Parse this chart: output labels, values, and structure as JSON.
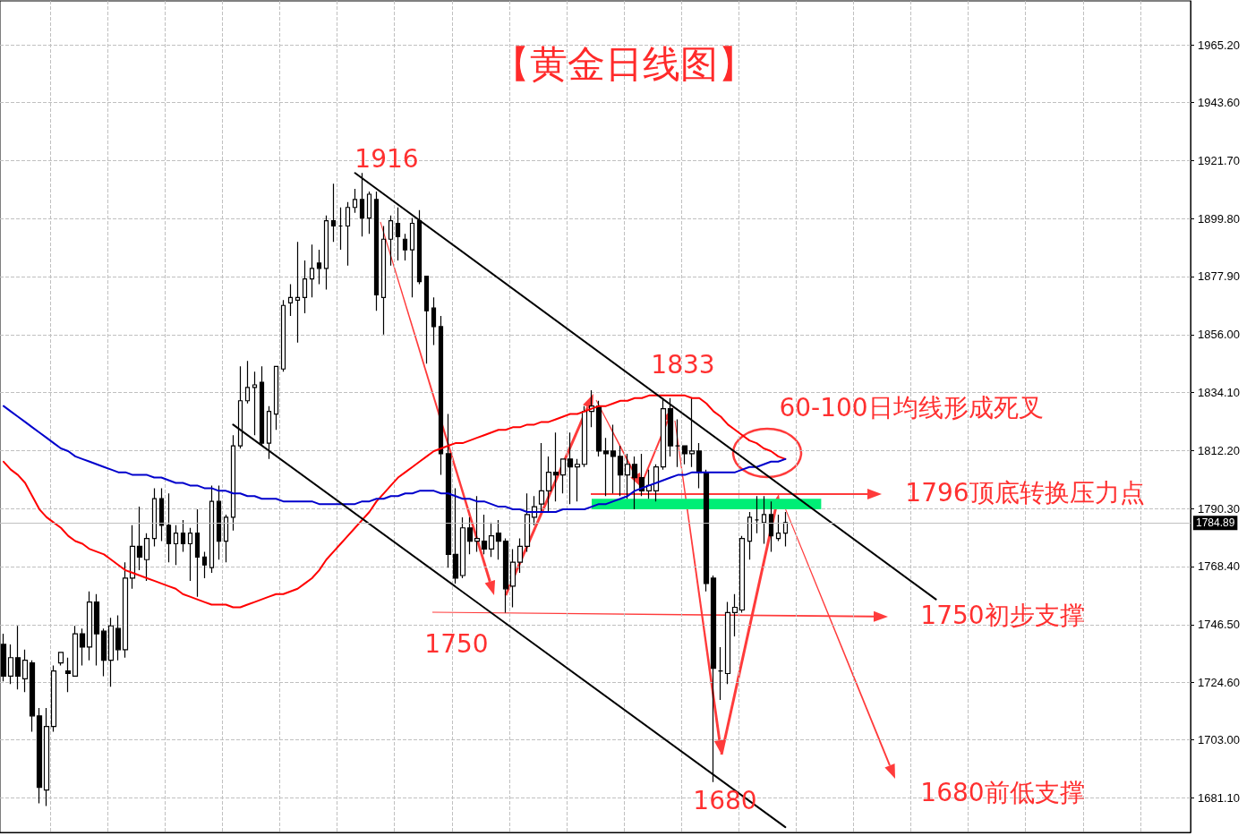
{
  "chart_data": {
    "type": "candlestick",
    "title": "【黄金日线图】",
    "categories": [
      null,
      null,
      null,
      null,
      null,
      null,
      null,
      null,
      null,
      null,
      null,
      null,
      null,
      null,
      null,
      null,
      null,
      null,
      null,
      null,
      null,
      null,
      null,
      null,
      null,
      null,
      null,
      null,
      null,
      null,
      null,
      null,
      null,
      null,
      null,
      null,
      null,
      null,
      null,
      null,
      null,
      null,
      null,
      null,
      null,
      null,
      null,
      null,
      null,
      null,
      null,
      null,
      null,
      null,
      null,
      null,
      null,
      null,
      null,
      null,
      null,
      null,
      null,
      null,
      null,
      null,
      null,
      null,
      null,
      null,
      null,
      null,
      null,
      null,
      null,
      null,
      null,
      null,
      null,
      null,
      null,
      null,
      null,
      null,
      null,
      null,
      null,
      null,
      null,
      null,
      null,
      null,
      null,
      null,
      null,
      null,
      null,
      null,
      null,
      null,
      null,
      null,
      null,
      null,
      null,
      null,
      null,
      null,
      null,
      null,
      null,
      null,
      null,
      null,
      null,
      null,
      null,
      null,
      null,
      null,
      null,
      null,
      null,
      null,
      null,
      null,
      null,
      null,
      null,
      null,
      null,
      null,
      null,
      null,
      null,
      null,
      null,
      null,
      null,
      null,
      null,
      null,
      null,
      null,
      null,
      null,
      null,
      null,
      null,
      null,
      null,
      null,
      null,
      null,
      null,
      null,
      null,
      null,
      null,
      null,
      null,
      null,
      null,
      null,
      null,
      null
    ],
    "series": [
      {
        "type": "candlestick",
        "ohlc": [
          [
            1739,
            1743,
            1725,
            1727
          ],
          [
            1727,
            1739,
            1724,
            1734
          ],
          [
            1734,
            1746,
            1722,
            1727
          ],
          [
            1726,
            1737,
            1721,
            1733
          ],
          [
            1732,
            1733,
            1706,
            1712
          ],
          [
            1712,
            1715,
            1679,
            1685
          ],
          [
            1684,
            1715,
            1678,
            1708
          ],
          [
            1708,
            1731,
            1706,
            1729
          ],
          [
            1732,
            1736,
            1731,
            1736
          ],
          [
            1729,
            1734,
            1721,
            1728
          ],
          [
            1727,
            1746,
            1727,
            1743
          ],
          [
            1743,
            1745,
            1731,
            1738
          ],
          [
            1738,
            1759,
            1733,
            1755
          ],
          [
            1755,
            1758,
            1731,
            1743
          ],
          [
            1744,
            1745,
            1727,
            1733
          ],
          [
            1733,
            1749,
            1723,
            1746
          ],
          [
            1745,
            1750,
            1733,
            1737
          ],
          [
            1737,
            1770,
            1734,
            1764
          ],
          [
            1764,
            1784,
            1760,
            1776
          ],
          [
            1776,
            1791,
            1767,
            1772
          ],
          [
            1771,
            1781,
            1763,
            1779
          ],
          [
            1779,
            1798,
            1776,
            1794
          ],
          [
            1794,
            1798,
            1778,
            1784
          ],
          [
            1784,
            1796,
            1770,
            1777
          ],
          [
            1777,
            1784,
            1769,
            1781
          ],
          [
            1781,
            1786,
            1774,
            1777
          ],
          [
            1777,
            1783,
            1763,
            1781
          ],
          [
            1781,
            1790,
            1757,
            1772
          ],
          [
            1772,
            1774,
            1764,
            1769
          ],
          [
            1768,
            1799,
            1766,
            1793
          ],
          [
            1793,
            1799,
            1771,
            1778
          ],
          [
            1778,
            1788,
            1770,
            1787
          ],
          [
            1787,
            1818,
            1782,
            1814
          ],
          [
            1814,
            1844,
            1813,
            1831
          ],
          [
            1831,
            1846,
            1830,
            1836
          ],
          [
            1836,
            1842,
            1818,
            1837
          ],
          [
            1838,
            1844,
            1814,
            1815
          ],
          [
            1815,
            1829,
            1809,
            1827
          ],
          [
            1826,
            1844,
            1820,
            1844
          ],
          [
            1843,
            1869,
            1842,
            1867
          ],
          [
            1868,
            1875,
            1863,
            1870
          ],
          [
            1869,
            1891,
            1853,
            1870
          ],
          [
            1870,
            1884,
            1864,
            1877
          ],
          [
            1877,
            1890,
            1870,
            1881
          ],
          [
            1883,
            1888,
            1875,
            1881
          ],
          [
            1881,
            1901,
            1873,
            1899
          ],
          [
            1899,
            1913,
            1891,
            1897
          ],
          [
            1897,
            1904,
            1888,
            1897
          ],
          [
            1897,
            1906,
            1882,
            1904
          ],
          [
            1904,
            1911,
            1902,
            1907
          ],
          [
            1907,
            1917,
            1893,
            1900
          ],
          [
            1900,
            1910,
            1894,
            1909
          ],
          [
            1907,
            1910,
            1865,
            1871
          ],
          [
            1870,
            1897,
            1856,
            1892
          ],
          [
            1892,
            1901,
            1882,
            1899
          ],
          [
            1898,
            1904,
            1884,
            1893
          ],
          [
            1892,
            1894,
            1884,
            1888
          ],
          [
            1888,
            1900,
            1870,
            1898
          ],
          [
            1899,
            1903,
            1875,
            1876
          ],
          [
            1878,
            1878,
            1845,
            1865
          ],
          [
            1866,
            1870,
            1852,
            1859
          ],
          [
            1859,
            1863,
            1803,
            1811
          ],
          [
            1811,
            1826,
            1768,
            1773
          ],
          [
            1773,
            1798,
            1762,
            1764
          ],
          [
            1765,
            1787,
            1764,
            1783
          ],
          [
            1783,
            1787,
            1773,
            1778
          ],
          [
            1778,
            1795,
            1774,
            1779
          ],
          [
            1778,
            1788,
            1773,
            1775
          ],
          [
            1775,
            1785,
            1772,
            1780
          ],
          [
            1781,
            1786,
            1771,
            1778
          ],
          [
            1778,
            1779,
            1751,
            1760
          ],
          [
            1761,
            1775,
            1753,
            1770
          ],
          [
            1770,
            1779,
            1766,
            1776
          ],
          [
            1776,
            1796,
            1774,
            1788
          ],
          [
            1787,
            1795,
            1784,
            1791
          ],
          [
            1792,
            1815,
            1789,
            1797
          ],
          [
            1797,
            1810,
            1789,
            1804
          ],
          [
            1804,
            1819,
            1793,
            1803
          ],
          [
            1803,
            1809,
            1796,
            1809
          ],
          [
            1809,
            1819,
            1792,
            1806
          ],
          [
            1806,
            1809,
            1793,
            1807
          ],
          [
            1807,
            1829,
            1806,
            1827
          ],
          [
            1827,
            1835,
            1821,
            1829
          ],
          [
            1829,
            1831,
            1810,
            1812
          ],
          [
            1812,
            1817,
            1795,
            1811
          ],
          [
            1812,
            1822,
            1796,
            1810
          ],
          [
            1810,
            1814,
            1795,
            1803
          ],
          [
            1803,
            1811,
            1794,
            1807
          ],
          [
            1807,
            1810,
            1790,
            1802
          ],
          [
            1802,
            1811,
            1795,
            1797
          ],
          [
            1797,
            1805,
            1794,
            1799
          ],
          [
            1797,
            1807,
            1793,
            1806
          ],
          [
            1806,
            1832,
            1805,
            1828
          ],
          [
            1828,
            1832,
            1810,
            1814
          ],
          [
            1814,
            1824,
            1806,
            1814
          ],
          [
            1814,
            1814,
            1807,
            1811
          ],
          [
            1811,
            1832,
            1806,
            1812
          ],
          [
            1812,
            1815,
            1798,
            1804
          ],
          [
            1804,
            1805,
            1759,
            1762
          ],
          [
            1764,
            1765,
            1687,
            1730
          ],
          [
            1729,
            1738,
            1718,
            1729
          ],
          [
            1728,
            1755,
            1724,
            1751
          ],
          [
            1751,
            1758,
            1742,
            1753
          ],
          [
            1752,
            1780,
            1751,
            1779
          ],
          [
            1778,
            1789,
            1771,
            1787
          ],
          [
            1786,
            1795,
            1781,
            1786
          ],
          [
            1785,
            1795,
            1777,
            1788
          ],
          [
            1788,
            1793,
            1774,
            1780
          ],
          [
            1779,
            1788,
            1778,
            1781
          ],
          [
            1781,
            1789,
            1776,
            1785
          ],
          null,
          null,
          null,
          null,
          null,
          null,
          null,
          null,
          null,
          null,
          null,
          null,
          null,
          null,
          null,
          null,
          null,
          null,
          null,
          null,
          null,
          null,
          null,
          null,
          null,
          null,
          null,
          null,
          null,
          null,
          null,
          null,
          null,
          null,
          null,
          null,
          null,
          null,
          null,
          null,
          null,
          null,
          null,
          null,
          null,
          null,
          null,
          null,
          null,
          null,
          null,
          null,
          null,
          null,
          null,
          null
        ]
      },
      {
        "type": "line",
        "color": "#ff0000",
        "values": [
          1808,
          1805,
          1803,
          1800,
          1795,
          1790,
          1787,
          1785,
          1783,
          1780,
          1778,
          1777,
          1775,
          1774,
          1773,
          1771,
          1769,
          1767,
          1766,
          1765,
          1764,
          1763,
          1762,
          1761,
          1760,
          1758,
          1757,
          1756,
          1755,
          1754,
          1754,
          1754,
          1753,
          1753,
          1754,
          1755,
          1756,
          1757,
          1758,
          1758,
          1759,
          1760,
          1762,
          1764,
          1767,
          1771,
          1774,
          1777,
          1780,
          1783,
          1786,
          1789,
          1793,
          1796,
          1799,
          1802,
          1804,
          1806,
          1808,
          1810,
          1812,
          1813,
          1814,
          1815,
          1815,
          1816,
          1817,
          1818,
          1819,
          1820,
          1820,
          1821,
          1821,
          1822,
          1822,
          1823,
          1823,
          1824,
          1825,
          1826,
          1826,
          1827,
          1828,
          1829,
          1829,
          1830,
          1831,
          1831,
          1832,
          1832,
          1833,
          1833,
          1833,
          1833,
          1833,
          1833,
          1832,
          1832,
          1830,
          1827,
          1825,
          1822,
          1820,
          1818,
          1816,
          1815,
          1813,
          1812,
          1810,
          1809,
          null,
          null,
          null,
          null,
          null,
          null,
          null,
          null,
          null,
          null,
          null,
          null,
          null,
          null,
          null,
          null,
          null,
          null,
          null,
          null,
          null,
          null,
          null,
          null,
          null,
          null,
          null,
          null,
          null,
          null,
          null,
          null,
          null,
          null,
          null,
          null,
          null,
          null,
          null,
          null,
          null,
          null,
          null,
          null,
          null,
          null,
          null,
          null,
          null,
          null,
          null,
          null,
          null,
          null,
          null,
          null
        ]
      },
      {
        "type": "line",
        "color": "#0000cc",
        "values": [
          1829,
          1827,
          1825,
          1823,
          1821,
          1819,
          1817,
          1815,
          1813,
          1812,
          1810,
          1809,
          1808,
          1807,
          1806,
          1805,
          1804,
          1804,
          1803,
          1803,
          1803,
          1802,
          1802,
          1801,
          1800,
          1800,
          1799,
          1799,
          1798,
          1798,
          1797,
          1797,
          1796,
          1796,
          1795,
          1795,
          1794,
          1794,
          1794,
          1793,
          1793,
          1793,
          1793,
          1793,
          1792,
          1792,
          1792,
          1792,
          1792,
          1792,
          1793,
          1793,
          1794,
          1794,
          1795,
          1795,
          1796,
          1796,
          1797,
          1797,
          1797,
          1796,
          1796,
          1795,
          1794,
          1794,
          1793,
          1793,
          1792,
          1791,
          1791,
          1790,
          1790,
          1789,
          1789,
          1789,
          1789,
          1789,
          1790,
          1790,
          1790,
          1790,
          1791,
          1792,
          1792,
          1793,
          1794,
          1795,
          1797,
          1798,
          1799,
          1800,
          1801,
          1802,
          1803,
          1803,
          1804,
          1804,
          1804,
          1804,
          1804,
          1804,
          1804,
          1805,
          1806,
          1806,
          1807,
          1808,
          1808,
          1809,
          null,
          null,
          null,
          null,
          null,
          null,
          null,
          null,
          null,
          null,
          null,
          null,
          null,
          null,
          null,
          null,
          null,
          null,
          null,
          null,
          null,
          null,
          null,
          null,
          null,
          null,
          null,
          null,
          null,
          null,
          null,
          null,
          null,
          null,
          null,
          null,
          null,
          null,
          null,
          null,
          null,
          null,
          null,
          null,
          null,
          null,
          null,
          null,
          null,
          null,
          null,
          null,
          null,
          null,
          null,
          null
        ]
      },
      {
        "type": "line",
        "color": "#000000",
        "values": [
          null,
          null,
          null,
          null,
          null,
          null,
          null,
          null,
          null,
          null,
          null,
          null,
          null,
          null,
          null,
          null,
          null,
          null,
          null,
          null,
          null,
          null,
          null,
          null,
          null,
          null,
          null,
          null,
          null,
          null,
          null,
          null,
          null,
          null,
          null,
          null,
          null,
          null,
          null,
          null,
          null,
          null,
          null,
          null,
          null,
          null,
          null,
          null,
          null,
          1917,
          null,
          null,
          null,
          null,
          null,
          null,
          null,
          null,
          null,
          null,
          null,
          null,
          null,
          null,
          null,
          null,
          null,
          null,
          null,
          null,
          null,
          null,
          null,
          null,
          null,
          null,
          null,
          null,
          null,
          null,
          null,
          null,
          null,
          null,
          null,
          null,
          null,
          null,
          null,
          null,
          null,
          null,
          null,
          null,
          null,
          null,
          null,
          null,
          null,
          null,
          null,
          null,
          null,
          null,
          null,
          null,
          null,
          null,
          null,
          null,
          null,
          null,
          null,
          null,
          null,
          null,
          null,
          null,
          null,
          null,
          null,
          null,
          null,
          null,
          null,
          null,
          null,
          null,
          null,
          null,
          1756,
          null,
          null,
          null,
          null,
          null,
          null,
          null,
          null,
          null,
          null,
          null,
          null,
          null,
          null,
          null,
          null,
          null,
          null,
          null,
          null,
          null,
          null,
          null,
          null,
          null,
          null,
          null,
          null,
          null,
          null,
          null,
          null,
          null,
          null,
          null
        ]
      },
      {
        "type": "line",
        "color": "#000000",
        "values": [
          null,
          null,
          null,
          null,
          null,
          null,
          null,
          null,
          null,
          null,
          null,
          null,
          null,
          null,
          null,
          null,
          null,
          null,
          null,
          null,
          null,
          null,
          null,
          null,
          null,
          null,
          null,
          null,
          null,
          null,
          null,
          null,
          1822,
          null,
          null,
          null,
          null,
          null,
          null,
          null,
          null,
          null,
          null,
          null,
          null,
          null,
          null,
          null,
          null,
          null,
          null,
          null,
          null,
          null,
          null,
          null,
          null,
          null,
          null,
          null,
          null,
          null,
          null,
          null,
          null,
          null,
          null,
          null,
          null,
          null,
          null,
          null,
          null,
          null,
          null,
          null,
          null,
          null,
          null,
          null,
          null,
          null,
          null,
          null,
          null,
          null,
          null,
          null,
          null,
          null,
          null,
          null,
          null,
          null,
          null,
          null,
          null,
          null,
          null,
          null,
          null,
          null,
          null,
          null,
          null,
          null,
          null,
          null,
          null,
          1670,
          null,
          null,
          null,
          null,
          null,
          null,
          null,
          null,
          null,
          null,
          null,
          null,
          null,
          null,
          null,
          null,
          null,
          null,
          null,
          null,
          null,
          null,
          null,
          null,
          null,
          null,
          null,
          null,
          null,
          null,
          null,
          null,
          null,
          null,
          null,
          null,
          null,
          null,
          null,
          null,
          null,
          null,
          null,
          null,
          null,
          null,
          null,
          null,
          null,
          null,
          null,
          null,
          null,
          null,
          null,
          null
        ]
      }
    ],
    "ylim": [
      1668,
      1982
    ],
    "yticks": [
      {
        "value": 1681.1,
        "label": "1681.10"
      },
      {
        "value": 1703,
        "label": "1703.00"
      },
      {
        "value": 1724.6,
        "label": "1724.60"
      },
      {
        "value": 1746.5,
        "label": "1746.50"
      },
      {
        "value": 1768.4,
        "label": "1768.40"
      },
      {
        "value": 1790.3,
        "label": "1790.30"
      },
      {
        "value": 1812.2,
        "label": "1812.20"
      },
      {
        "value": 1834.1,
        "label": "1834.10"
      },
      {
        "value": 1856,
        "label": "1856.00"
      },
      {
        "value": 1877.9,
        "label": "1877.90"
      },
      {
        "value": 1899.8,
        "label": "1899.80"
      },
      {
        "value": 1921.7,
        "label": "1921.70"
      },
      {
        "value": 1943.6,
        "label": "1943.60"
      },
      {
        "value": 1965.2,
        "label": "1965.20"
      }
    ],
    "grid": true,
    "tick_labels": "y",
    "marker": "none",
    "line_style": "solid",
    "ref_lines": [
      {
        "axis": "y",
        "value": 1784.89,
        "label": "1784.89",
        "color": "#c0c0c0"
      }
    ],
    "bands": [
      {
        "axis": "y",
        "from": 1790,
        "to": 1794,
        "color": "#00ee76"
      }
    ],
    "annotations": [
      "1916",
      "1833",
      "60-100日均线形成死叉",
      "1796顶底转换压力点",
      "1750初步支撑",
      "1750",
      "1680",
      "1680前低支撑"
    ]
  }
}
